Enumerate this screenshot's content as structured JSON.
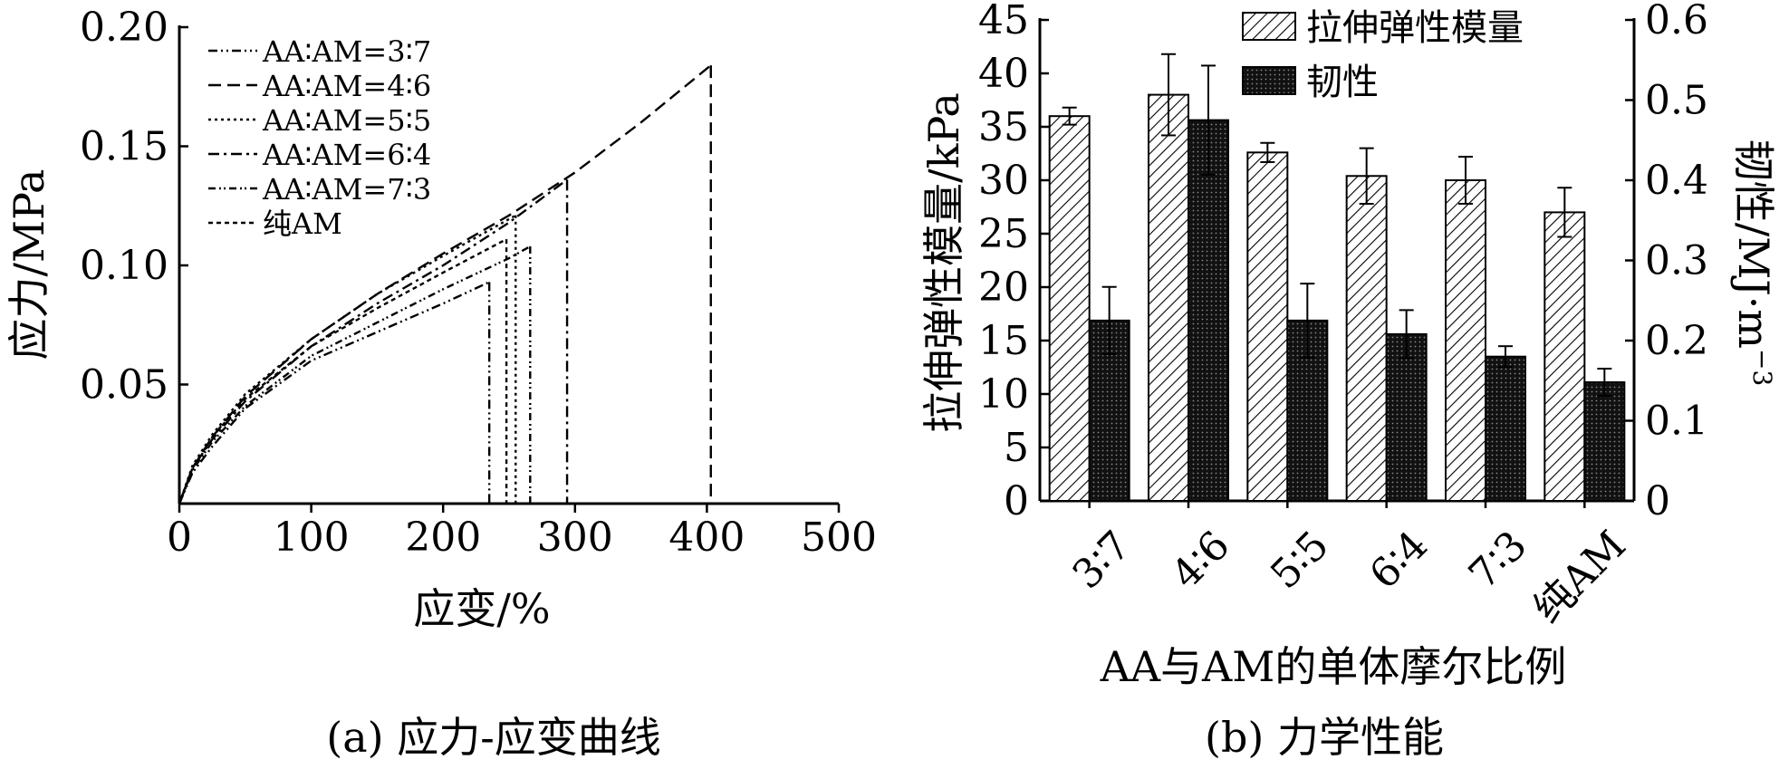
{
  "chart_data": [
    {
      "type": "line",
      "caption": "(a) 应力-应变曲线",
      "xlabel": "应变/%",
      "ylabel": "应力/MPa",
      "xlim": [
        0,
        500
      ],
      "ylim": [
        0,
        0.2
      ],
      "xticks": [
        "0",
        "100",
        "200",
        "300",
        "400",
        "500"
      ],
      "yticks": [
        "0.05",
        "0.10",
        "0.15",
        "0.20"
      ],
      "grid": false,
      "legend_position": "top-left",
      "series": [
        {
          "name": "AA∶AM=3∶7",
          "style": "dash-dot-dot",
          "points": [
            [
              0,
              0
            ],
            [
              10,
              0.013
            ],
            [
              25,
              0.024
            ],
            [
              50,
              0.04
            ],
            [
              100,
              0.06
            ],
            [
              150,
              0.072
            ],
            [
              200,
              0.084
            ],
            [
              235,
              0.093
            ]
          ],
          "break_x": 235
        },
        {
          "name": "AA∶AM=4∶6",
          "style": "dashed",
          "points": [
            [
              0,
              0
            ],
            [
              10,
              0.015
            ],
            [
              25,
              0.028
            ],
            [
              50,
              0.045
            ],
            [
              100,
              0.069
            ],
            [
              150,
              0.088
            ],
            [
              200,
              0.105
            ],
            [
              250,
              0.121
            ],
            [
              300,
              0.139
            ],
            [
              350,
              0.16
            ],
            [
              403,
              0.184
            ]
          ],
          "break_x": 403
        },
        {
          "name": "AA∶AM=5∶5",
          "style": "dotted",
          "points": [
            [
              0,
              0
            ],
            [
              10,
              0.016
            ],
            [
              25,
              0.029
            ],
            [
              50,
              0.046
            ],
            [
              100,
              0.069
            ],
            [
              150,
              0.088
            ],
            [
              200,
              0.104
            ],
            [
              255,
              0.121
            ]
          ],
          "break_x": 255
        },
        {
          "name": "AA∶AM=6∶4",
          "style": "dash-dot",
          "points": [
            [
              0,
              0
            ],
            [
              10,
              0.015
            ],
            [
              25,
              0.027
            ],
            [
              50,
              0.043
            ],
            [
              100,
              0.066
            ],
            [
              150,
              0.084
            ],
            [
              200,
              0.1
            ],
            [
              250,
              0.118
            ],
            [
              294,
              0.136
            ]
          ],
          "break_x": 294
        },
        {
          "name": "AA∶AM=7∶3",
          "style": "dash-dot-dot-2",
          "points": [
            [
              0,
              0
            ],
            [
              10,
              0.014
            ],
            [
              25,
              0.026
            ],
            [
              50,
              0.041
            ],
            [
              100,
              0.062
            ],
            [
              150,
              0.076
            ],
            [
              200,
              0.09
            ],
            [
              250,
              0.103
            ],
            [
              266,
              0.108
            ]
          ],
          "break_x": 266
        },
        {
          "name": "纯AM",
          "style": "short-dash",
          "points": [
            [
              0,
              0
            ],
            [
              10,
              0.015
            ],
            [
              25,
              0.028
            ],
            [
              50,
              0.044
            ],
            [
              100,
              0.066
            ],
            [
              150,
              0.082
            ],
            [
              200,
              0.097
            ],
            [
              248,
              0.111
            ]
          ],
          "break_x": 248
        }
      ]
    },
    {
      "type": "bar",
      "caption": "(b) 力学性能",
      "xlabel": "AA与AM的单体摩尔比例",
      "ylabel_left": "拉伸弹性模量/kPa",
      "ylabel_right_main": "韧性/MJ·m",
      "ylabel_right_sup": "−3",
      "ylim_left": [
        0,
        45
      ],
      "ylim_right": [
        0,
        0.6
      ],
      "yticks_left": [
        "0",
        "5",
        "10",
        "15",
        "20",
        "25",
        "30",
        "35",
        "40",
        "45"
      ],
      "yticks_right": [
        "0",
        "0.1",
        "0.2",
        "0.3",
        "0.4",
        "0.5",
        "0.6"
      ],
      "categories": [
        "3∶7",
        "4∶6",
        "5∶5",
        "6∶4",
        "7∶3",
        "纯AM"
      ],
      "legend_position": "top-right",
      "series": [
        {
          "name": "拉伸弹性模量",
          "axis": "left",
          "pattern": "hatched",
          "values": [
            36.0,
            38.0,
            32.6,
            30.4,
            30.0,
            27.0
          ],
          "errors": [
            0.8,
            3.8,
            0.9,
            2.6,
            2.2,
            2.3
          ]
        },
        {
          "name": "韧性",
          "axis": "right",
          "pattern": "dark-dotted",
          "values": [
            0.225,
            0.475,
            0.225,
            0.208,
            0.18,
            0.148
          ],
          "errors": [
            0.042,
            0.068,
            0.046,
            0.03,
            0.013,
            0.017
          ]
        }
      ]
    }
  ]
}
